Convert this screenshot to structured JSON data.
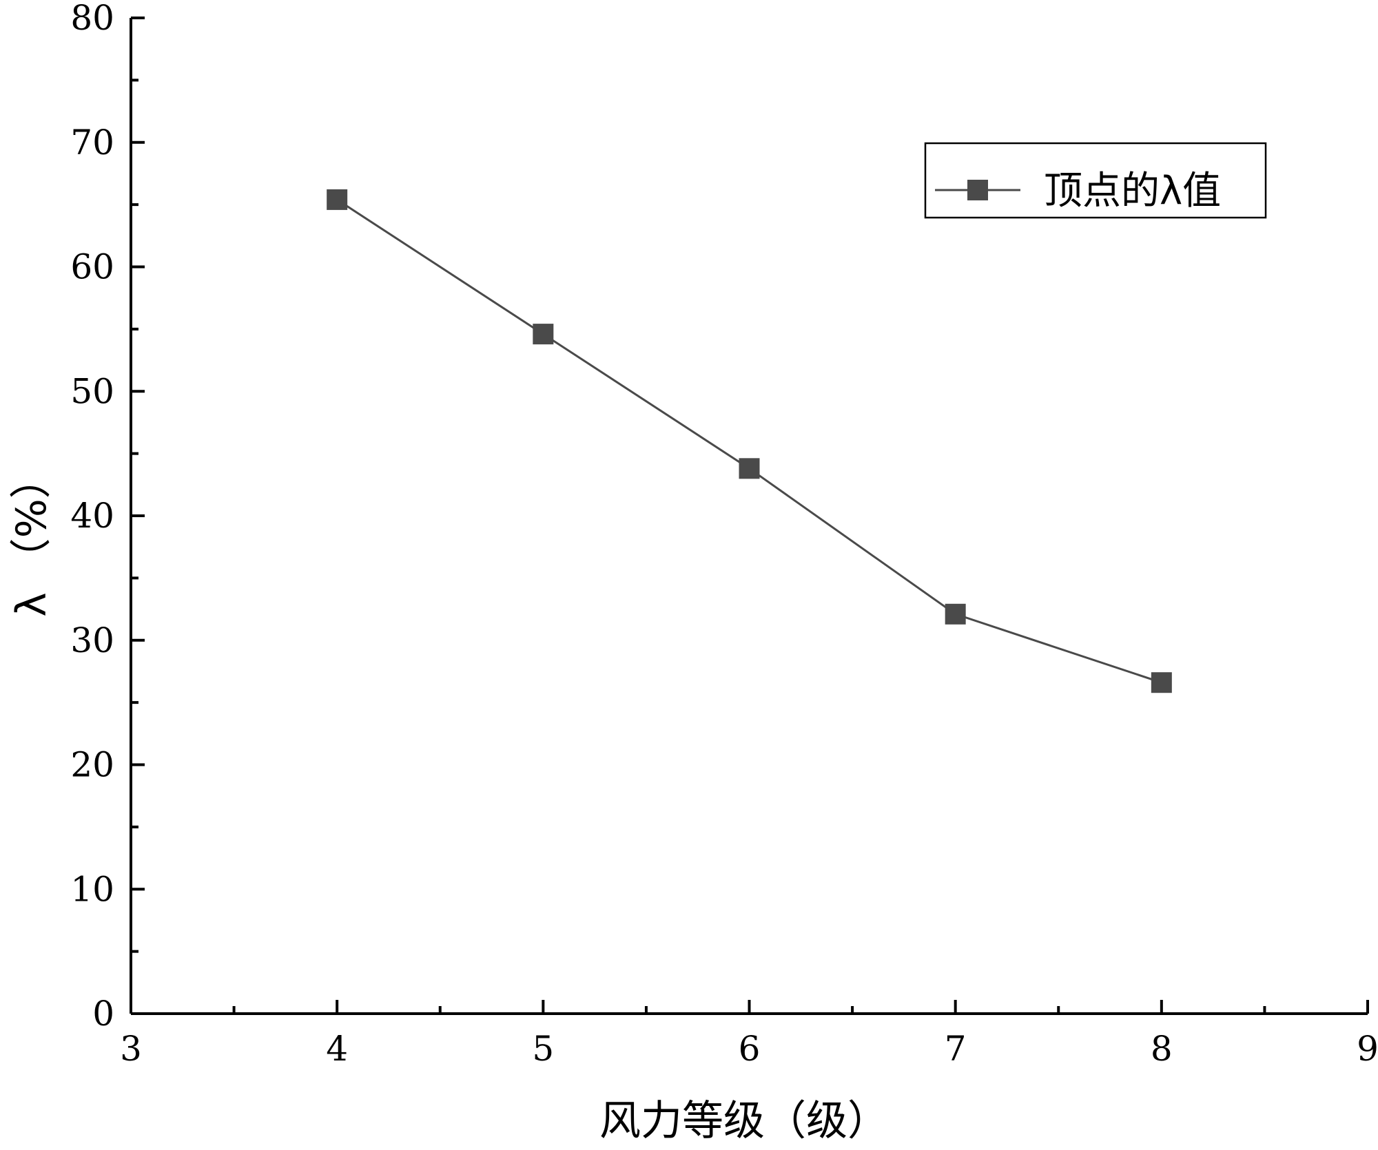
{
  "chart_data": {
    "type": "line",
    "title": "",
    "xlabel": "风力等级（级）",
    "ylabel": "λ （%）",
    "xlim": [
      3,
      9
    ],
    "ylim": [
      0,
      80
    ],
    "x_ticks": [
      3,
      4,
      5,
      6,
      7,
      8,
      9
    ],
    "y_ticks": [
      0,
      10,
      20,
      30,
      40,
      50,
      60,
      70,
      80
    ],
    "grid": false,
    "legend_position": "top-right",
    "series": [
      {
        "name": "顶点的λ值",
        "color": "#4a4a4a",
        "marker": "square",
        "x": [
          4,
          5,
          6,
          7,
          8
        ],
        "y": [
          65.4,
          54.6,
          43.8,
          32.1,
          26.6
        ]
      }
    ]
  }
}
